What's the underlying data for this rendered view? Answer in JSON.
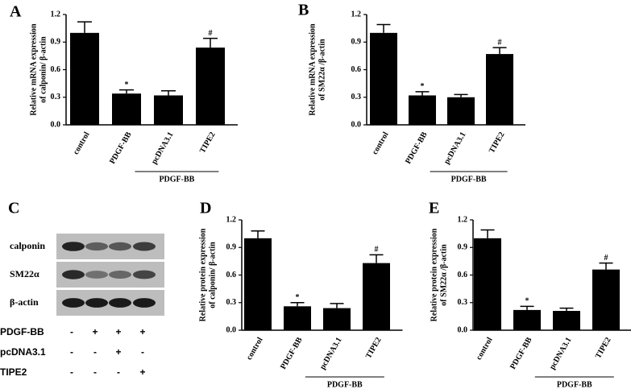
{
  "chart_data": [
    {
      "type": "bar",
      "panel": "A",
      "ylabel": [
        "Relative mRNA expression",
        "of calponin/ β-actin"
      ],
      "categories": [
        "control",
        "PDGF-BB",
        "pcDNA3.1",
        "TIPE2"
      ],
      "values": [
        1.0,
        0.34,
        0.32,
        0.84
      ],
      "errors": [
        0.12,
        0.04,
        0.05,
        0.1
      ],
      "annotations": [
        null,
        "*",
        null,
        "#"
      ],
      "group_label": "PDGF-BB",
      "color": "#000000",
      "ylim": [
        0,
        1.2
      ],
      "yticks": [
        {
          "value": 0,
          "label": "0.0"
        },
        0.3,
        0.6,
        0.9,
        1.2
      ]
    },
    {
      "type": "bar",
      "panel": "B",
      "ylabel": [
        "Relative mRNA expression",
        "of SM22α /β-actin"
      ],
      "categories": [
        "control",
        "PDGF-BB",
        "pcDNA3.1",
        "TIPE2"
      ],
      "values": [
        1.0,
        0.32,
        0.3,
        0.77
      ],
      "errors": [
        0.09,
        0.04,
        0.03,
        0.07
      ],
      "annotations": [
        null,
        "*",
        null,
        "#"
      ],
      "group_label": "PDGF-BB",
      "color": "#000000",
      "ylim": [
        0,
        1.2
      ],
      "yticks": [
        {
          "value": 0,
          "label": "0.0"
        },
        0.3,
        0.6,
        0.9,
        1.2
      ]
    },
    {
      "type": "bar",
      "panel": "D",
      "ylabel": [
        "Relative protein expression",
        "of calponin/ β-actin"
      ],
      "categories": [
        "control",
        "PDGF-BB",
        "pcDNA3.1",
        "TIPE2"
      ],
      "values": [
        1.0,
        0.26,
        0.24,
        0.73
      ],
      "errors": [
        0.08,
        0.04,
        0.05,
        0.09
      ],
      "annotations": [
        null,
        "*",
        null,
        "#"
      ],
      "group_label": "PDGF-BB",
      "color": "#000000",
      "ylim": [
        0,
        1.2
      ],
      "yticks": [
        {
          "value": 0,
          "label": "0.0"
        },
        0.3,
        0.6,
        0.9,
        1.2
      ]
    },
    {
      "type": "bar",
      "panel": "E",
      "ylabel": [
        "Relative protein expression",
        "of SM22α /β-actin"
      ],
      "categories": [
        "control",
        "PDGF-BB",
        "pcDNA3.1",
        "TIPE2"
      ],
      "values": [
        1.0,
        0.22,
        0.21,
        0.66
      ],
      "errors": [
        0.09,
        0.04,
        0.03,
        0.07
      ],
      "annotations": [
        null,
        "*",
        null,
        "#"
      ],
      "group_label": "PDGF-BB",
      "color": "#000000",
      "ylim": [
        0,
        1.2
      ],
      "yticks": [
        {
          "value": 0,
          "label": "0.0"
        },
        0.3,
        0.6,
        0.9,
        1.2
      ]
    }
  ],
  "blot": {
    "panel": "C",
    "bands": [
      "calponin",
      "SM22α",
      "β-actin"
    ],
    "conditions": [
      {
        "name": "PDGF-BB",
        "marks": [
          "-",
          "+",
          "+",
          "+"
        ]
      },
      {
        "name": "pcDNA3.1",
        "marks": [
          "-",
          "-",
          "+",
          "-"
        ]
      },
      {
        "name": "TIPE2",
        "marks": [
          "-",
          "-",
          "-",
          "+"
        ]
      }
    ]
  }
}
